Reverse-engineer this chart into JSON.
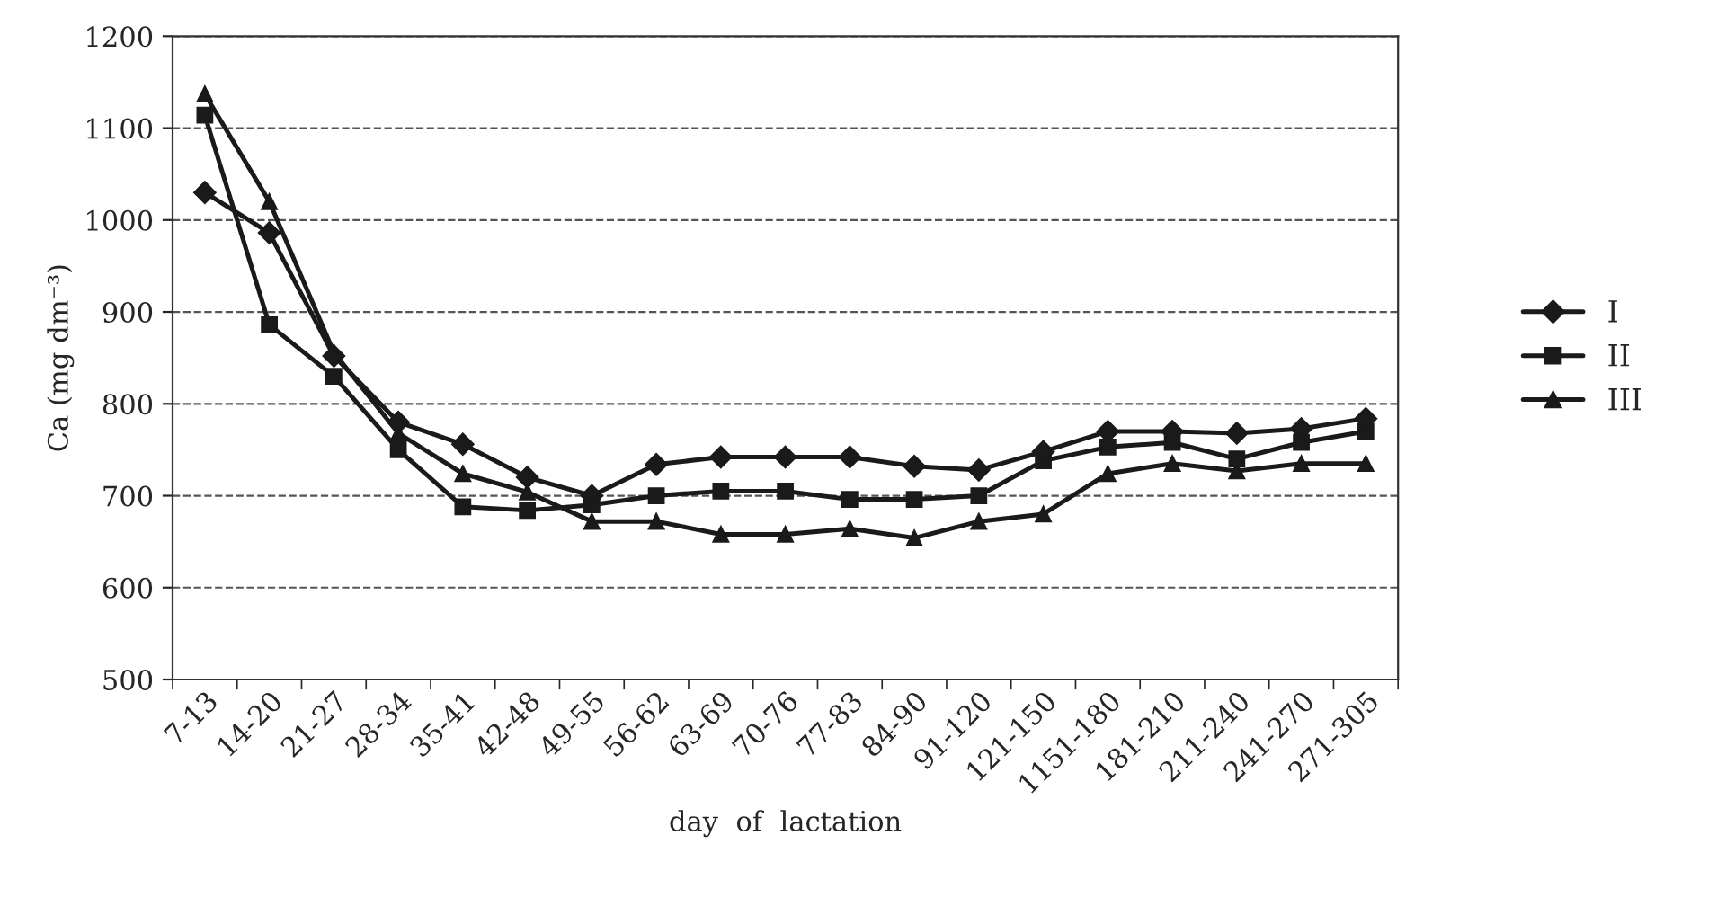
{
  "chart_data": {
    "type": "line",
    "xlabel": "day  of  lactation",
    "ylabel": "Ca (mg dm⁻³)",
    "categories": [
      "7-13",
      "14-20",
      "21-27",
      "28-34",
      "35-41",
      "42-48",
      "49-55",
      "56-62",
      "63-69",
      "70-76",
      "77-83",
      "84-90",
      "91-120",
      "121-150",
      "1151-180",
      "181-210",
      "211-240",
      "241-270",
      "271-305"
    ],
    "series": [
      {
        "name": "I",
        "color": "#1a1a1a",
        "marker": "diamond",
        "values": [
          1030,
          986,
          852,
          780,
          756,
          720,
          700,
          734,
          742,
          742,
          742,
          732,
          728,
          748,
          770,
          770,
          768,
          773,
          784
        ]
      },
      {
        "name": "II",
        "color": "#1a1a1a",
        "marker": "square",
        "values": [
          1114,
          886,
          830,
          750,
          688,
          684,
          690,
          700,
          705,
          705,
          696,
          696,
          700,
          738,
          753,
          758,
          740,
          758,
          770
        ]
      },
      {
        "name": "III",
        "color": "#1a1a1a",
        "marker": "triangle",
        "values": [
          1137,
          1020,
          856,
          768,
          724,
          704,
          672,
          672,
          658,
          658,
          664,
          654,
          672,
          680,
          724,
          735,
          727,
          735,
          735
        ]
      }
    ],
    "ylim": [
      500,
      1200
    ],
    "yticks": [
      500,
      600,
      700,
      800,
      900,
      1000,
      1100,
      1200
    ],
    "grid": "y",
    "legend": "right",
    "line_style": "solid"
  }
}
